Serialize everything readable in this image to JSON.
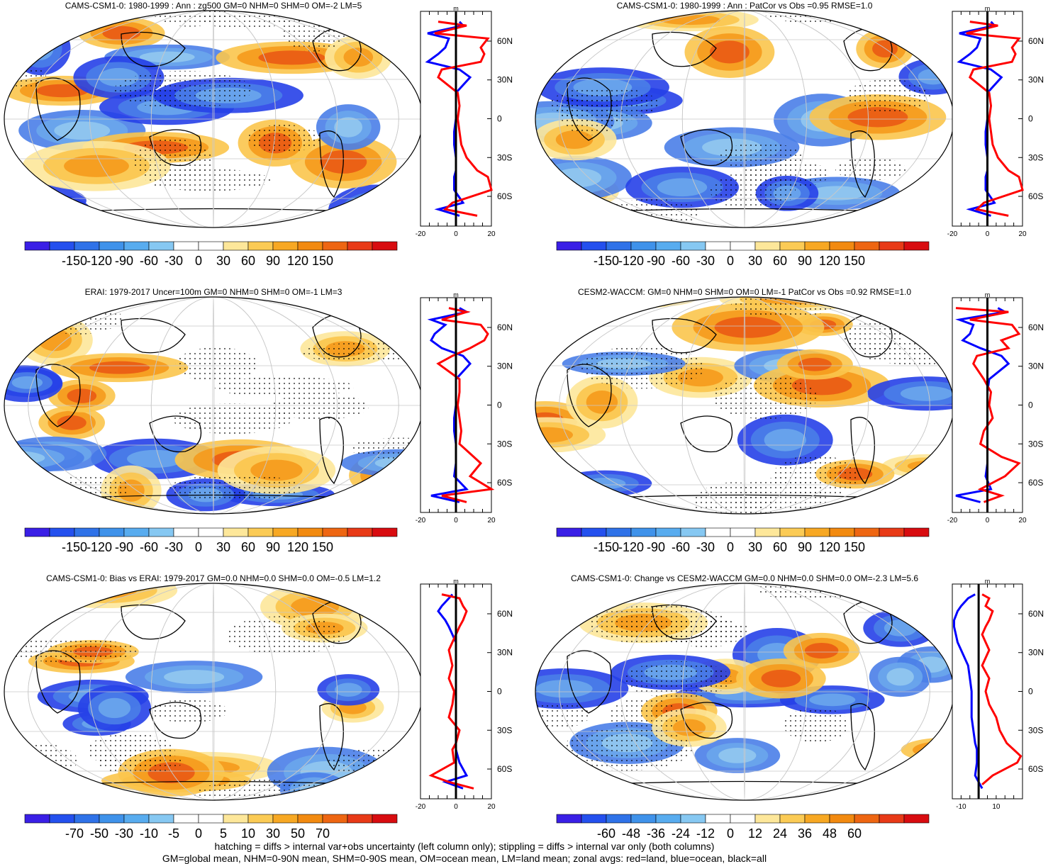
{
  "footer": {
    "line1": "hatching = diffs > internal var+obs uncertainty (left column only); stippling = diffs > internal var only (both columns)",
    "line2": "GM=global mean, NHM=0-90N mean, SHM=0-90S mean, OM=ocean mean, LM=land mean; zonal avgs: red=land, blue=ocean, black=all"
  },
  "colors": {
    "land": "#ff0000",
    "ocean": "#0000ff",
    "all": "#000000"
  },
  "chart_data": [
    {
      "type": "map",
      "title": "CAMS-CSM1-0: 1980-1999 : Ann : zg500 GM=0 NHM=0 SHM=0 OM=-2 LM=5",
      "colorbar_ticks": [
        "-150",
        "-120",
        "-90",
        "-60",
        "-30",
        "0",
        "30",
        "60",
        "90",
        "120",
        "150"
      ],
      "zonal": {
        "unit": "m",
        "xlim": [
          -20,
          20
        ],
        "xticks": [
          "-20",
          "0",
          "20"
        ],
        "lat_ticks": [
          "60N",
          "30N",
          "0",
          "30S",
          "60S"
        ],
        "land": [
          [
            75,
            -10
          ],
          [
            72,
            6
          ],
          [
            66,
            -12
          ],
          [
            62,
            18
          ],
          [
            55,
            14
          ],
          [
            50,
            16
          ],
          [
            44,
            14
          ],
          [
            38,
            -8
          ],
          [
            32,
            -10
          ],
          [
            20,
            1
          ],
          [
            10,
            2
          ],
          [
            0,
            1
          ],
          [
            -10,
            2
          ],
          [
            -20,
            3
          ],
          [
            -30,
            6
          ],
          [
            -40,
            12
          ],
          [
            -45,
            18
          ],
          [
            -55,
            20
          ],
          [
            -65,
            -2
          ],
          [
            -70,
            -6
          ],
          [
            -75,
            12
          ]
        ],
        "ocean": [
          [
            75,
            2
          ],
          [
            72,
            4
          ],
          [
            66,
            -16
          ],
          [
            62,
            -4
          ],
          [
            55,
            -6
          ],
          [
            50,
            -10
          ],
          [
            44,
            -16
          ],
          [
            38,
            2
          ],
          [
            32,
            8
          ],
          [
            20,
            0
          ],
          [
            10,
            0
          ],
          [
            0,
            0
          ],
          [
            -10,
            -1
          ],
          [
            -20,
            -1
          ],
          [
            -30,
            0
          ],
          [
            -40,
            0
          ],
          [
            -45,
            -1
          ],
          [
            -55,
            -1
          ],
          [
            -65,
            4
          ],
          [
            -70,
            -10
          ],
          [
            -75,
            2
          ]
        ]
      }
    },
    {
      "type": "map",
      "title": "CAMS-CSM1-0: 1980-1999 : Ann : PatCor vs Obs =0.95 RMSE=1.0",
      "colorbar_ticks": [
        "-150",
        "-120",
        "-90",
        "-60",
        "-30",
        "0",
        "30",
        "60",
        "90",
        "120",
        "150"
      ],
      "zonal": {
        "unit": "m",
        "xlim": [
          -20,
          20
        ],
        "xticks": [
          "-20",
          "0",
          "20"
        ],
        "lat_ticks": [
          "60N",
          "30N",
          "0",
          "30S",
          "60S"
        ],
        "land": [
          [
            75,
            -10
          ],
          [
            72,
            6
          ],
          [
            66,
            -12
          ],
          [
            62,
            18
          ],
          [
            55,
            14
          ],
          [
            50,
            16
          ],
          [
            44,
            14
          ],
          [
            38,
            -8
          ],
          [
            32,
            -10
          ],
          [
            20,
            1
          ],
          [
            10,
            2
          ],
          [
            0,
            1
          ],
          [
            -10,
            2
          ],
          [
            -20,
            3
          ],
          [
            -30,
            6
          ],
          [
            -40,
            12
          ],
          [
            -45,
            18
          ],
          [
            -55,
            20
          ],
          [
            -65,
            -2
          ],
          [
            -70,
            -6
          ],
          [
            -75,
            12
          ]
        ],
        "ocean": [
          [
            75,
            2
          ],
          [
            72,
            4
          ],
          [
            66,
            -16
          ],
          [
            62,
            -4
          ],
          [
            55,
            -6
          ],
          [
            50,
            -10
          ],
          [
            44,
            -16
          ],
          [
            38,
            2
          ],
          [
            32,
            8
          ],
          [
            20,
            0
          ],
          [
            10,
            0
          ],
          [
            0,
            0
          ],
          [
            -10,
            -1
          ],
          [
            -20,
            -1
          ],
          [
            -30,
            0
          ],
          [
            -40,
            0
          ],
          [
            -45,
            -1
          ],
          [
            -55,
            -1
          ],
          [
            -65,
            4
          ],
          [
            -70,
            -10
          ],
          [
            -75,
            2
          ]
        ]
      }
    },
    {
      "type": "map",
      "title": "ERAI: 1979-2017 Uncer=100m GM=0 NHM=0 SHM=0 OM=-1 LM=3",
      "colorbar_ticks": [
        "-150",
        "-120",
        "-90",
        "-60",
        "-30",
        "0",
        "30",
        "60",
        "90",
        "120",
        "150"
      ],
      "zonal": {
        "unit": "m",
        "xlim": [
          -20,
          20
        ],
        "xticks": [
          "-20",
          "0",
          "20"
        ],
        "lat_ticks": [
          "60N",
          "30N",
          "0",
          "30S",
          "60S"
        ],
        "land": [
          [
            75,
            -4
          ],
          [
            72,
            6
          ],
          [
            66,
            -8
          ],
          [
            62,
            14
          ],
          [
            55,
            18
          ],
          [
            50,
            16
          ],
          [
            44,
            8
          ],
          [
            38,
            -2
          ],
          [
            32,
            -10
          ],
          [
            20,
            2
          ],
          [
            10,
            2
          ],
          [
            0,
            1
          ],
          [
            -10,
            2
          ],
          [
            -20,
            3
          ],
          [
            -30,
            2
          ],
          [
            -40,
            10
          ],
          [
            -45,
            14
          ],
          [
            -55,
            8
          ],
          [
            -65,
            20
          ],
          [
            -70,
            -8
          ],
          [
            -75,
            6
          ]
        ],
        "ocean": [
          [
            75,
            2
          ],
          [
            72,
            6
          ],
          [
            66,
            -14
          ],
          [
            62,
            -6
          ],
          [
            55,
            -12
          ],
          [
            50,
            -14
          ],
          [
            44,
            -8
          ],
          [
            38,
            4
          ],
          [
            32,
            8
          ],
          [
            20,
            0
          ],
          [
            10,
            0
          ],
          [
            0,
            0
          ],
          [
            -10,
            -1
          ],
          [
            -20,
            -1
          ],
          [
            -30,
            0
          ],
          [
            -40,
            0
          ],
          [
            -45,
            0
          ],
          [
            -55,
            -1
          ],
          [
            -65,
            6
          ],
          [
            -70,
            -14
          ],
          [
            -75,
            2
          ]
        ]
      }
    },
    {
      "type": "map",
      "title": "CESM2-WACCM: GM=0 NHM=0 SHM=0 OM=0 LM=-1 PatCor vs Obs =0.92 RMSE=1.0",
      "colorbar_ticks": [
        "-150",
        "-120",
        "-90",
        "-60",
        "-30",
        "0",
        "30",
        "60",
        "90",
        "120",
        "150"
      ],
      "zonal": {
        "unit": "m",
        "xlim": [
          -20,
          20
        ],
        "xticks": [
          "-20",
          "0",
          "20"
        ],
        "lat_ticks": [
          "60N",
          "30N",
          "0",
          "30S",
          "60S"
        ],
        "land": [
          [
            75,
            -18
          ],
          [
            72,
            12
          ],
          [
            66,
            -10
          ],
          [
            62,
            14
          ],
          [
            55,
            18
          ],
          [
            50,
            8
          ],
          [
            44,
            12
          ],
          [
            38,
            -6
          ],
          [
            32,
            -8
          ],
          [
            20,
            -2
          ],
          [
            10,
            2
          ],
          [
            0,
            1
          ],
          [
            -10,
            3
          ],
          [
            -20,
            -2
          ],
          [
            -30,
            -4
          ],
          [
            -40,
            8
          ],
          [
            -45,
            18
          ],
          [
            -55,
            10
          ],
          [
            -65,
            -4
          ],
          [
            -70,
            8
          ],
          [
            -75,
            -2
          ]
        ],
        "ocean": [
          [
            75,
            6
          ],
          [
            72,
            10
          ],
          [
            66,
            -16
          ],
          [
            62,
            -8
          ],
          [
            55,
            -10
          ],
          [
            50,
            -14
          ],
          [
            44,
            -4
          ],
          [
            38,
            8
          ],
          [
            32,
            12
          ],
          [
            20,
            1
          ],
          [
            10,
            0
          ],
          [
            0,
            0
          ],
          [
            -10,
            0
          ],
          [
            -20,
            0
          ],
          [
            -30,
            0
          ],
          [
            -40,
            0
          ],
          [
            -45,
            0
          ],
          [
            -55,
            -1
          ],
          [
            -65,
            2
          ],
          [
            -70,
            -18
          ],
          [
            -75,
            -4
          ]
        ]
      }
    },
    {
      "type": "map",
      "title": "CAMS-CSM1-0: Bias vs ERAI: 1979-2017 GM=0.0 NHM=0.0 SHM=0.0 OM=-0.5 LM=1.2",
      "colorbar_ticks": [
        "-70",
        "-50",
        "-30",
        "-10",
        "-5",
        "0",
        "5",
        "10",
        "30",
        "50",
        "70"
      ],
      "zonal": {
        "unit": "m",
        "xlim": [
          -20,
          20
        ],
        "xticks": [
          "-20",
          "0",
          "20"
        ],
        "lat_ticks": [
          "60N",
          "30N",
          "0",
          "30S",
          "60S"
        ],
        "land": [
          [
            75,
            -8
          ],
          [
            72,
            2
          ],
          [
            66,
            4
          ],
          [
            62,
            6
          ],
          [
            55,
            4
          ],
          [
            50,
            2
          ],
          [
            44,
            0
          ],
          [
            38,
            -2
          ],
          [
            32,
            -4
          ],
          [
            20,
            -2
          ],
          [
            10,
            -4
          ],
          [
            0,
            -1
          ],
          [
            -10,
            -2
          ],
          [
            -20,
            -4
          ],
          [
            -30,
            2
          ],
          [
            -40,
            0
          ],
          [
            -45,
            -2
          ],
          [
            -55,
            -1
          ],
          [
            -65,
            -14
          ],
          [
            -70,
            -4
          ],
          [
            -75,
            10
          ]
        ],
        "ocean": [
          [
            75,
            -2
          ],
          [
            72,
            -4
          ],
          [
            66,
            -8
          ],
          [
            62,
            -10
          ],
          [
            55,
            -6
          ],
          [
            50,
            -4
          ],
          [
            44,
            -2
          ],
          [
            38,
            0
          ],
          [
            32,
            0
          ],
          [
            20,
            0
          ],
          [
            10,
            0
          ],
          [
            0,
            0
          ],
          [
            -10,
            0
          ],
          [
            -20,
            0
          ],
          [
            -30,
            0
          ],
          [
            -40,
            0
          ],
          [
            -45,
            0
          ],
          [
            -55,
            2
          ],
          [
            -65,
            6
          ],
          [
            -70,
            -6
          ],
          [
            -75,
            4
          ]
        ]
      }
    },
    {
      "type": "map",
      "title": "CAMS-CSM1-0: Change vs CESM2-WACCM GM=0.0 NHM=0.0 SHM=0.0 OM=-2.3 LM=5.6",
      "colorbar_ticks": [
        "-60",
        "-48",
        "-36",
        "-24",
        "-12",
        "0",
        "12",
        "24",
        "36",
        "48",
        "60"
      ],
      "zonal": {
        "unit": "m",
        "xlim": [
          -15,
          25
        ],
        "xticks": [
          "-10",
          "10"
        ],
        "lat_ticks": [
          "60N",
          "30N",
          "0",
          "30S",
          "60S"
        ],
        "land": [
          [
            75,
            2
          ],
          [
            72,
            6
          ],
          [
            66,
            4
          ],
          [
            62,
            8
          ],
          [
            55,
            6
          ],
          [
            50,
            4
          ],
          [
            44,
            2
          ],
          [
            38,
            4
          ],
          [
            32,
            6
          ],
          [
            20,
            2
          ],
          [
            10,
            6
          ],
          [
            0,
            4
          ],
          [
            -10,
            6
          ],
          [
            -20,
            10
          ],
          [
            -30,
            12
          ],
          [
            -40,
            16
          ],
          [
            -45,
            20
          ],
          [
            -50,
            24
          ],
          [
            -55,
            22
          ],
          [
            -65,
            8
          ],
          [
            -72,
            2
          ]
        ],
        "ocean": [
          [
            75,
            -2
          ],
          [
            72,
            -6
          ],
          [
            66,
            -10
          ],
          [
            62,
            -12
          ],
          [
            55,
            -14
          ],
          [
            50,
            -14
          ],
          [
            44,
            -13
          ],
          [
            38,
            -12
          ],
          [
            32,
            -10
          ],
          [
            20,
            -6
          ],
          [
            10,
            -5
          ],
          [
            0,
            -4
          ],
          [
            -10,
            -4
          ],
          [
            -20,
            -4
          ],
          [
            -30,
            -3
          ],
          [
            -40,
            -2
          ],
          [
            -45,
            -1
          ],
          [
            -55,
            -1
          ],
          [
            -65,
            -2
          ],
          [
            -70,
            0
          ],
          [
            -75,
            2
          ]
        ]
      }
    }
  ]
}
